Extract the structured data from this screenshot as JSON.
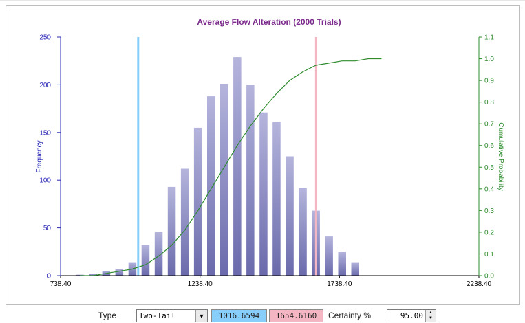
{
  "chart_data": {
    "type": "bar",
    "title": "Average Flow Alteration (2000 Trials)",
    "xlabel": "",
    "ylabel": "Frequency",
    "y2label": "Cumulative Probability",
    "xlim": [
      738.4,
      2238.4
    ],
    "ylim": [
      0,
      250
    ],
    "y2lim": [
      0,
      1.1
    ],
    "xticks": [
      "738.40",
      "1238.40",
      "1738.40",
      "2238.40"
    ],
    "yticks": [
      "0",
      "50",
      "100",
      "150",
      "200",
      "250"
    ],
    "y2ticks": [
      "0.0",
      "0.1",
      "0.2",
      "0.3",
      "0.4",
      "0.5",
      "0.6",
      "0.7",
      "0.8",
      "0.9",
      "1.0",
      "1.1"
    ],
    "bin_centers": [
      808,
      855,
      902,
      949,
      996,
      1043,
      1090,
      1137,
      1184,
      1231,
      1278,
      1325,
      1372,
      1419,
      1466,
      1513,
      1560,
      1607,
      1654,
      1701,
      1748,
      1795
    ],
    "series": [
      {
        "type": "bar",
        "values": [
          1,
          2,
          5,
          7,
          14,
          32,
          46,
          93,
          112,
          155,
          188,
          201,
          229,
          200,
          171,
          161,
          125,
          92,
          68,
          41,
          25,
          14
        ]
      },
      {
        "type": "line",
        "x": [
          808,
          855,
          902,
          949,
          996,
          1043,
          1090,
          1137,
          1184,
          1231,
          1278,
          1325,
          1372,
          1419,
          1466,
          1513,
          1560,
          1607,
          1654,
          1701,
          1748,
          1795,
          1842,
          1889
        ],
        "values": [
          0.0,
          0.0,
          0.01,
          0.02,
          0.03,
          0.05,
          0.09,
          0.14,
          0.21,
          0.3,
          0.4,
          0.5,
          0.6,
          0.69,
          0.77,
          0.84,
          0.9,
          0.94,
          0.97,
          0.98,
          0.99,
          0.99,
          1.0,
          1.0
        ]
      }
    ],
    "markers": [
      {
        "name": "lower",
        "x": 1016.6594,
        "color": "#87cefa"
      },
      {
        "name": "upper",
        "x": 1654.616,
        "color": "#f4b6c2"
      }
    ],
    "grid": false,
    "legend": "none"
  },
  "colors": {
    "bar": "#a3a3d1",
    "line": "#2e8b2e",
    "title": "#7b2a8c",
    "left_axis": "#2c2cb8",
    "right_axis": "#2e8b2e",
    "lower_box": "#87cefa",
    "upper_box": "#f4b6c2"
  },
  "controls": {
    "type_label": "Type",
    "type_value": "Two-Tail",
    "lower_value": "1016.6594",
    "upper_value": "1654.6160",
    "certainty_label": "Certainty %",
    "certainty_value": "95.00"
  }
}
